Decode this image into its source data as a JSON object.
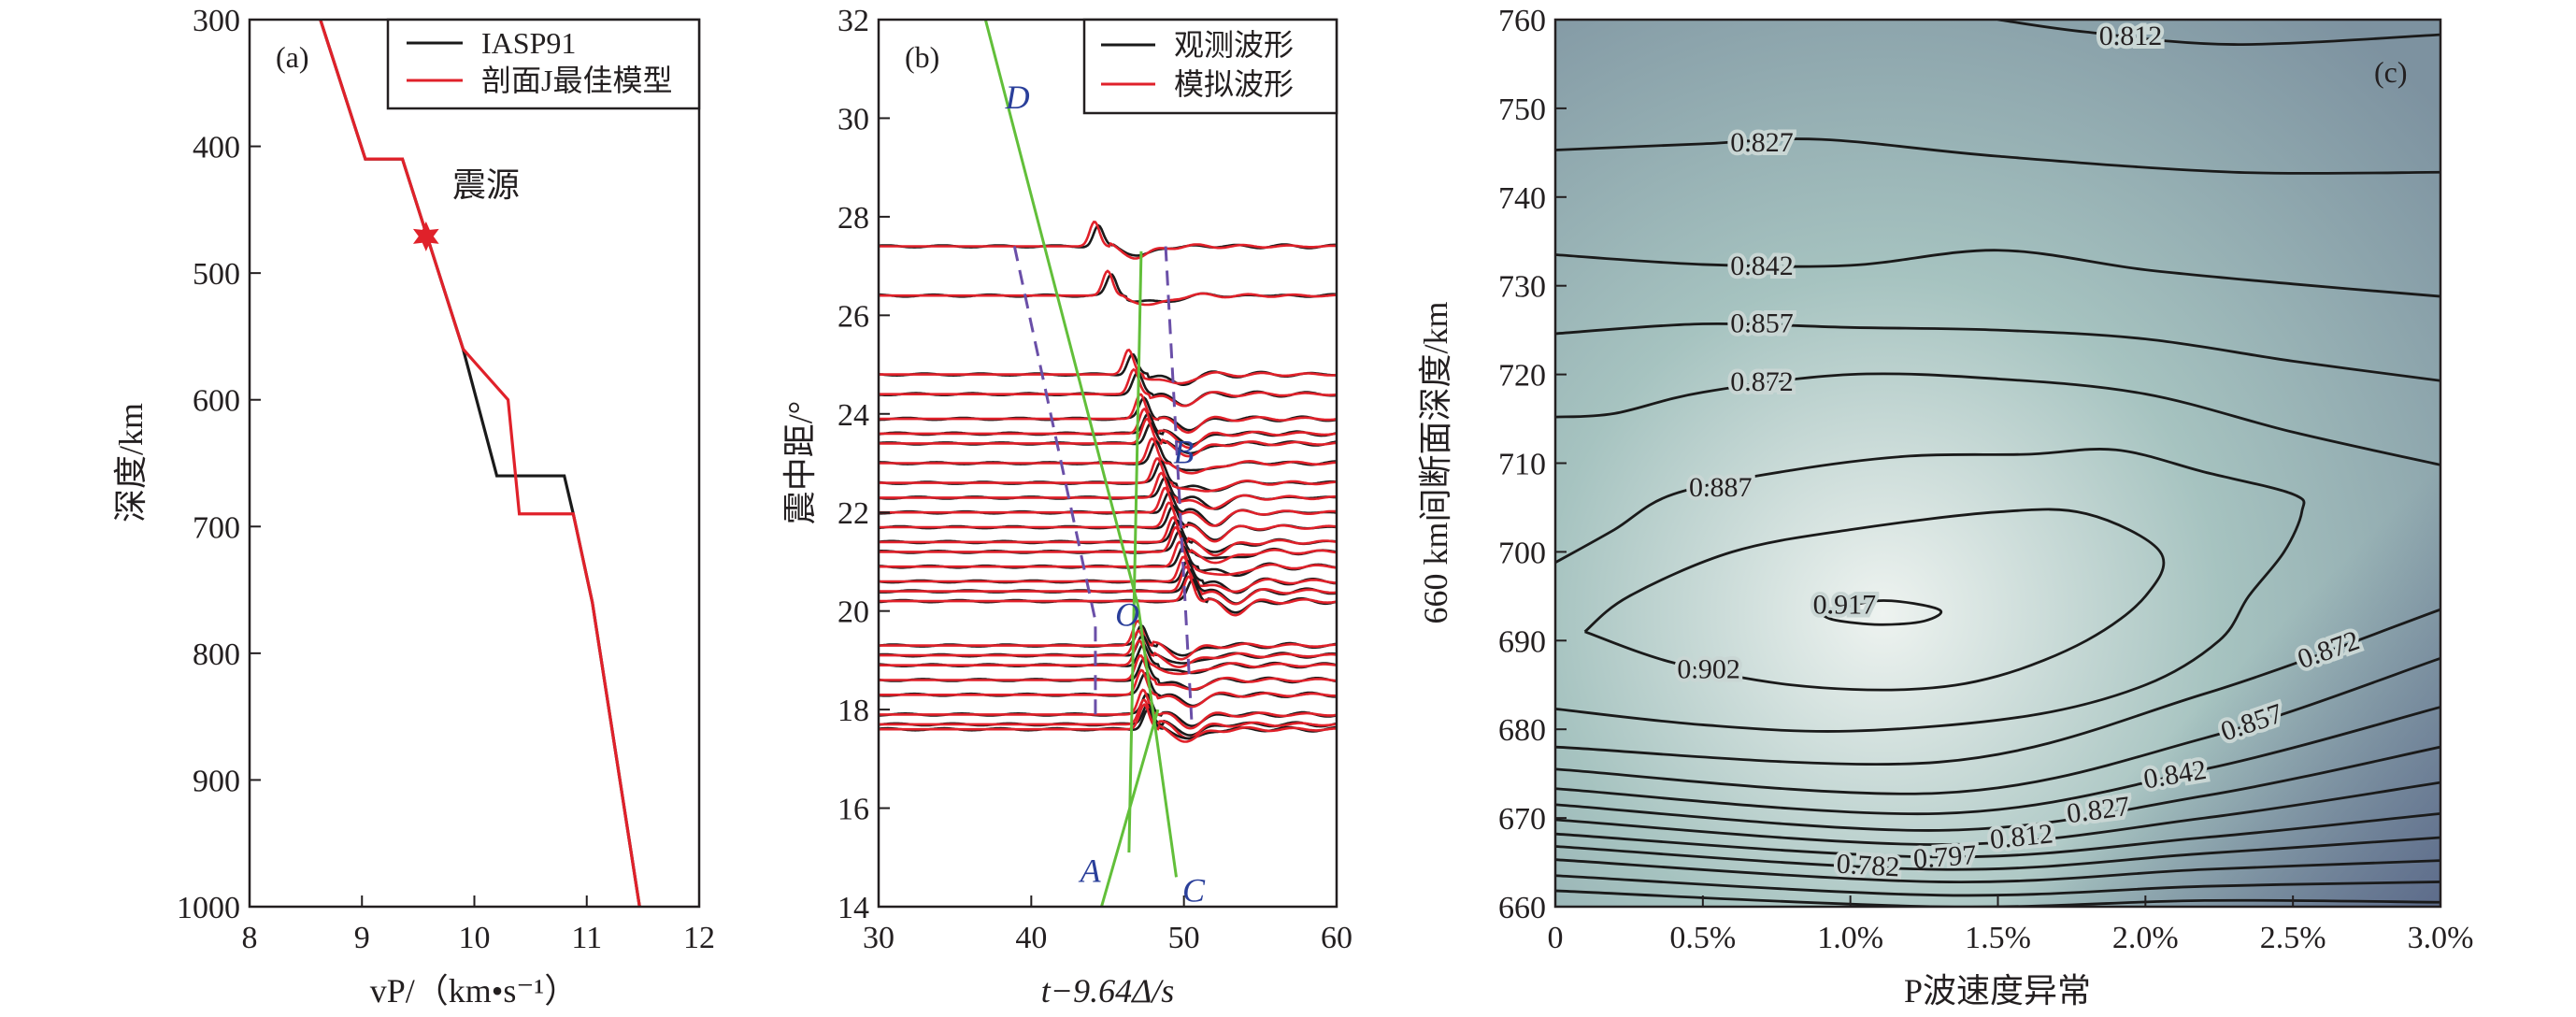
{
  "chart_data": [
    {
      "panel": "(a)",
      "type": "line",
      "xlabel": "vP/（km•s⁻¹）",
      "xlabel_main": "v",
      "xlabel_sub": "P",
      "xlabel_rest": "/（km•s",
      "xlabel_sup": "−1",
      "xlabel_close": "）",
      "ylabel": "深度/km",
      "xlim": [
        8,
        12
      ],
      "ylim": [
        1000,
        300
      ],
      "xticks": [
        8,
        9,
        10,
        11,
        12
      ],
      "yticks": [
        300,
        400,
        500,
        600,
        700,
        800,
        900,
        1000
      ],
      "legend": "top-right",
      "series": [
        {
          "name": "IASP91",
          "color": "#1a1a1a",
          "points": [
            [
              8.63,
              300
            ],
            [
              9.03,
              410
            ],
            [
              9.36,
              410
            ],
            [
              9.9,
              560
            ],
            [
              10.2,
              660
            ],
            [
              10.8,
              660
            ],
            [
              10.88,
              690
            ],
            [
              11.05,
              760
            ],
            [
              11.47,
              1000
            ]
          ]
        },
        {
          "name": "剖面J最佳模型",
          "color": "#e0212a",
          "points": [
            [
              8.63,
              300
            ],
            [
              9.03,
              410
            ],
            [
              9.36,
              410
            ],
            [
              9.9,
              560
            ],
            [
              10.3,
              600
            ],
            [
              10.4,
              690
            ],
            [
              10.88,
              690
            ],
            [
              11.05,
              760
            ],
            [
              11.47,
              1000
            ]
          ]
        }
      ],
      "annotation": {
        "text": "震源",
        "marker": "star",
        "color": "#e0212a",
        "x": 9.57,
        "y": 471
      }
    },
    {
      "panel": "(b)",
      "type": "line",
      "xlabel": "t−9.64Δ/s",
      "xlabel_t": "t",
      "xlabel_mid": "−9.64",
      "xlabel_delta": "Δ",
      "xlabel_unit": "/s",
      "ylabel": "震中距/°",
      "xlim": [
        30,
        60
      ],
      "ylim": [
        14,
        32
      ],
      "xticks": [
        30,
        40,
        50,
        60
      ],
      "yticks": [
        14,
        16,
        18,
        20,
        22,
        24,
        26,
        28,
        30,
        32
      ],
      "legend": "top-right",
      "series": [
        {
          "name": "观测波形",
          "color": "#1a1a1a"
        },
        {
          "name": "模拟波形",
          "color": "#e0212a"
        }
      ],
      "trace_distances": [
        27.4,
        26.4,
        24.8,
        24.4,
        23.9,
        23.6,
        23.4,
        23.0,
        22.6,
        22.3,
        22.0,
        21.7,
        21.4,
        21.2,
        20.9,
        20.6,
        20.4,
        20.2,
        19.3,
        19.1,
        18.9,
        18.6,
        18.3,
        17.9,
        17.7,
        17.6
      ],
      "green_lines": [
        [
          [
            37.0,
            32.0
          ],
          [
            47.0,
            20.1
          ],
          [
            49.5,
            14.6
          ]
        ],
        [
          [
            47.2,
            27.3
          ],
          [
            46.4,
            15.1
          ]
        ],
        [
          [
            44.6,
            14.0
          ],
          [
            48.3,
            18.0
          ]
        ]
      ],
      "dashed_lines": [
        [
          [
            38.9,
            27.4
          ],
          [
            44.2,
            19.8
          ],
          [
            44.2,
            17.8
          ]
        ],
        [
          [
            48.8,
            27.4
          ],
          [
            50.5,
            17.8
          ]
        ]
      ],
      "line_colors": {
        "green": "#62bf3a",
        "dashed": "#6a4fa8"
      },
      "point_labels": [
        {
          "text": "D",
          "x": 38.3,
          "y": 30.2
        },
        {
          "text": "O",
          "x": 45.5,
          "y": 19.7
        },
        {
          "text": "B",
          "x": 49.3,
          "y": 23.0
        },
        {
          "text": "A",
          "x": 43.2,
          "y": 14.5
        },
        {
          "text": "C",
          "x": 49.9,
          "y": 14.1
        }
      ]
    },
    {
      "panel": "(c)",
      "type": "contour",
      "xlabel": "P波速度异常",
      "ylabel": "660 km间断面深度/km",
      "xlim": [
        0,
        3.0
      ],
      "ylim": [
        660,
        760
      ],
      "xticks": [
        0,
        0.5,
        1.0,
        1.5,
        2.0,
        2.5,
        3.0
      ],
      "xticklabels": [
        "0",
        "0.5%",
        "1.0%",
        "1.5%",
        "2.0%",
        "2.5%",
        "3.0%"
      ],
      "yticks": [
        660,
        670,
        680,
        690,
        700,
        710,
        720,
        730,
        740,
        750,
        760
      ],
      "colors": {
        "center": "#eef3f0",
        "mid": "#a6c3c0",
        "top": "#7d92a0",
        "bottom": "#4e5a80"
      },
      "maximum_near": [
        1.1,
        693
      ],
      "contours": [
        {
          "level": "0.812",
          "label": true,
          "points": [
            [
              1.5,
              760
            ],
            [
              1.8,
              758.6
            ],
            [
              2.3,
              757.2
            ],
            [
              3,
              758.3
            ]
          ],
          "lx": 1.95,
          "ly": 758.2
        },
        {
          "level": "0.827",
          "label": true,
          "points": [
            [
              0,
              745.3
            ],
            [
              0.5,
              746
            ],
            [
              0.9,
              746.5
            ],
            [
              1.5,
              744.6
            ],
            [
              2.3,
              742.8
            ],
            [
              3,
              742.8
            ]
          ],
          "lx": 0.7,
          "ly": 746.2
        },
        {
          "level": "0.842",
          "label": true,
          "points": [
            [
              0,
              733.5
            ],
            [
              0.5,
              732.4
            ],
            [
              1.0,
              732.3
            ],
            [
              1.5,
              734
            ],
            [
              2.0,
              731.8
            ],
            [
              2.5,
              730.2
            ],
            [
              3,
              728.8
            ]
          ],
          "lx": 0.7,
          "ly": 732.3
        },
        {
          "level": "0.857",
          "label": true,
          "points": [
            [
              0,
              724.6
            ],
            [
              0.5,
              725.7
            ],
            [
              1.0,
              725.3
            ],
            [
              1.5,
              725
            ],
            [
              2.0,
              724
            ],
            [
              2.5,
              721.5
            ],
            [
              3,
              719.3
            ]
          ],
          "lx": 0.7,
          "ly": 725.8
        },
        {
          "level": "0.872",
          "label": true,
          "points": [
            [
              0,
              715.2
            ],
            [
              0.2,
              715.6
            ],
            [
              0.5,
              718
            ],
            [
              1.0,
              720
            ],
            [
              1.5,
              719.5
            ],
            [
              2.0,
              717.8
            ],
            [
              2.5,
              713.5
            ],
            [
              3,
              709.8
            ]
          ],
          "lx": 0.7,
          "ly": 719.2
        },
        {
          "level": "0.887",
          "label": true,
          "points": [
            [
              0,
              698.8
            ],
            [
              0.2,
              702.5
            ],
            [
              0.4,
              706.5
            ],
            [
              0.8,
              709.2
            ],
            [
              1.2,
              710.8
            ],
            [
              1.6,
              711
            ],
            [
              1.9,
              711.5
            ],
            [
              2.2,
              709
            ],
            [
              2.5,
              706.5
            ],
            [
              2.53,
              704.5
            ],
            [
              2.47,
              700
            ],
            [
              2.35,
              695
            ],
            [
              2.25,
              690
            ],
            [
              2.0,
              685
            ],
            [
              1.6,
              681.5
            ],
            [
              1.0,
              679.8
            ],
            [
              0.5,
              680.5
            ],
            [
              0,
              682.3
            ]
          ],
          "lx": 0.56,
          "ly": 707.3
        },
        {
          "level": "0.902",
          "label": true,
          "points": [
            [
              0.1,
              691
            ],
            [
              0.25,
              695
            ],
            [
              0.6,
              700
            ],
            [
              1.0,
              702.5
            ],
            [
              1.5,
              704.5
            ],
            [
              1.8,
              704.3
            ],
            [
              2.05,
              700
            ],
            [
              2.0,
              695
            ],
            [
              1.8,
              690
            ],
            [
              1.5,
              686
            ],
            [
              1.2,
              684.5
            ],
            [
              0.8,
              685
            ],
            [
              0.4,
              687.5
            ],
            [
              0.1,
              691
            ]
          ],
          "lx": 0.52,
          "ly": 686.8
        },
        {
          "level": "0.917",
          "label": true,
          "points": [
            [
              0.9,
              693
            ],
            [
              1.1,
              694.5
            ],
            [
              1.3,
              693.5
            ],
            [
              1.25,
              692.2
            ],
            [
              1.1,
              691.8
            ],
            [
              0.95,
              692.3
            ],
            [
              0.9,
              693
            ]
          ],
          "lx": 0.98,
          "ly": 694.1
        },
        {
          "level": "0.872",
          "label": true,
          "points": [
            [
              0,
              678
            ],
            [
              1.3,
              676.3
            ],
            [
              2.2,
              684
            ],
            [
              3,
              693.5
            ]
          ],
          "lx": 2.5,
          "ly": 686.5
        },
        {
          "level": "0.857",
          "label": true,
          "points": [
            [
              0,
              675.5
            ],
            [
              1.3,
              672.8
            ],
            [
              2.2,
              679
            ],
            [
              3,
              688
            ]
          ],
          "lx": 2.45,
          "ly": 681.5
        },
        {
          "level": "0.842",
          "label": true,
          "points": [
            [
              0,
              673.3
            ],
            [
              1.3,
              670.5
            ],
            [
              2.2,
              675.5
            ],
            [
              3,
              682.5
            ]
          ],
          "lx": 2.43,
          "ly": 677.2
        },
        {
          "level": "0.827",
          "label": true,
          "points": [
            [
              0,
              671.5
            ],
            [
              1.3,
              668.6
            ],
            [
              2.2,
              672.5
            ],
            [
              3,
              678
            ]
          ],
          "lx": 2.42,
          "ly": 673.4
        },
        {
          "level": "0.812",
          "label": true,
          "points": [
            [
              0,
              669.8
            ],
            [
              1.3,
              667
            ],
            [
              2.2,
              670
            ],
            [
              3,
              674
            ]
          ],
          "lx": 2.42,
          "ly": 670.2
        },
        {
          "level": "0.797",
          "label": true,
          "points": [
            [
              0,
              668.2
            ],
            [
              1.3,
              665.6
            ],
            [
              2.2,
              667.8
            ],
            [
              3,
              670.5
            ]
          ],
          "lx": 2.42,
          "ly": 667.2
        },
        {
          "level": "0.782",
          "label": true,
          "points": [
            [
              0,
              666.8
            ],
            [
              1.3,
              664.2
            ],
            [
              2.2,
              666
            ],
            [
              3,
              667.8
            ]
          ],
          "lx": 2.42,
          "ly": 664.2
        },
        {
          "level": "",
          "label": false,
          "points": [
            [
              0,
              665.3
            ],
            [
              1.3,
              662.8
            ],
            [
              2.2,
              664.2
            ],
            [
              3,
              665.2
            ]
          ]
        },
        {
          "level": "",
          "label": false,
          "points": [
            [
              0,
              663.5
            ],
            [
              1.3,
              661.3
            ],
            [
              2.2,
              662.3
            ],
            [
              3,
              662.8
            ]
          ]
        },
        {
          "level": "",
          "label": false,
          "points": [
            [
              0,
              661.8
            ],
            [
              1.3,
              660
            ],
            [
              2.2,
              660.7
            ],
            [
              3,
              660.5
            ]
          ]
        }
      ]
    }
  ]
}
